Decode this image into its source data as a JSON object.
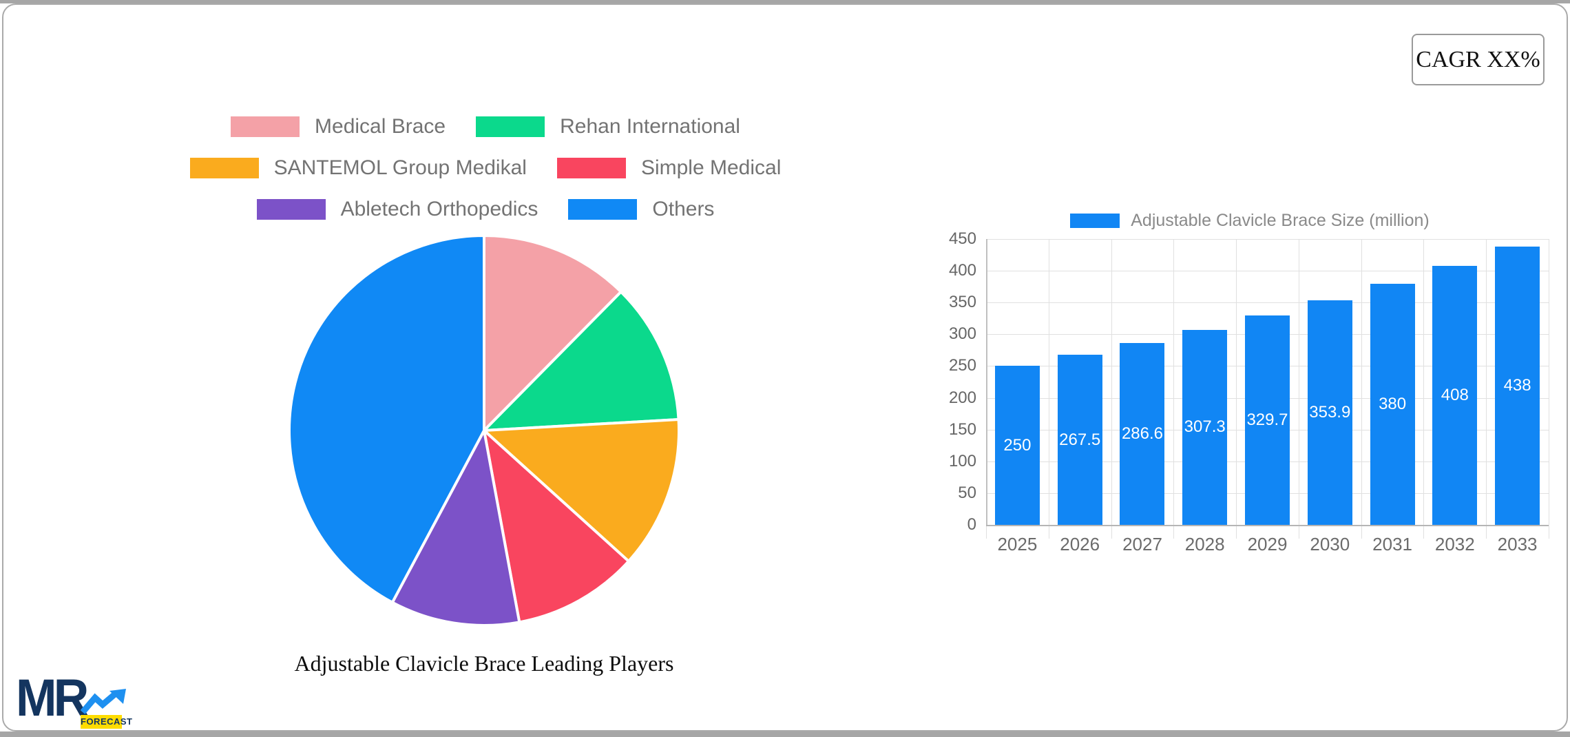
{
  "cagr": {
    "label": "CAGR XX%"
  },
  "logo": {
    "mr": "MR",
    "forecast": "FORECAST"
  },
  "colors": {
    "bar_blue": "#1186f4",
    "legend_text": "#737373",
    "axis_text": "#666666",
    "grid": "#e0e0e0",
    "card_border": "#aaaaaa",
    "logo_navy": "#14355f",
    "logo_arrow_blue": "#1e90f0",
    "logo_yellow": "#ffdc00"
  },
  "chart_data": [
    {
      "type": "pie",
      "title": "Adjustable Clavicle Brace Leading Players",
      "legend_position": "top",
      "start_angle_deg": 0,
      "direction": "clockwise",
      "labels": [
        "Medical Brace",
        "Rehan International",
        "SANTEMOL Group Medikal",
        "Simple Medical",
        "Abletech Orthopedics",
        "Others"
      ],
      "values_pct": [
        12.4,
        11.7,
        12.6,
        10.4,
        10.7,
        42.2
      ],
      "colors": [
        "#f4a1a7",
        "#0bd98c",
        "#faab1e",
        "#f9455f",
        "#7c52c8",
        "#1089f5"
      ],
      "slice_border": "#ffffff"
    },
    {
      "type": "bar",
      "legend": "Adjustable Clavicle Brace Size (million)",
      "categories": [
        "2025",
        "2026",
        "2027",
        "2028",
        "2029",
        "2030",
        "2031",
        "2032",
        "2033"
      ],
      "values": [
        250,
        267.5,
        286.6,
        307.3,
        329.7,
        353.9,
        380,
        408,
        438
      ],
      "bar_color": "#1186f4",
      "value_label_color": "#ffffff",
      "ylim": [
        0,
        450
      ],
      "ytick_step": 50,
      "grid": true,
      "legend_position": "top"
    }
  ]
}
